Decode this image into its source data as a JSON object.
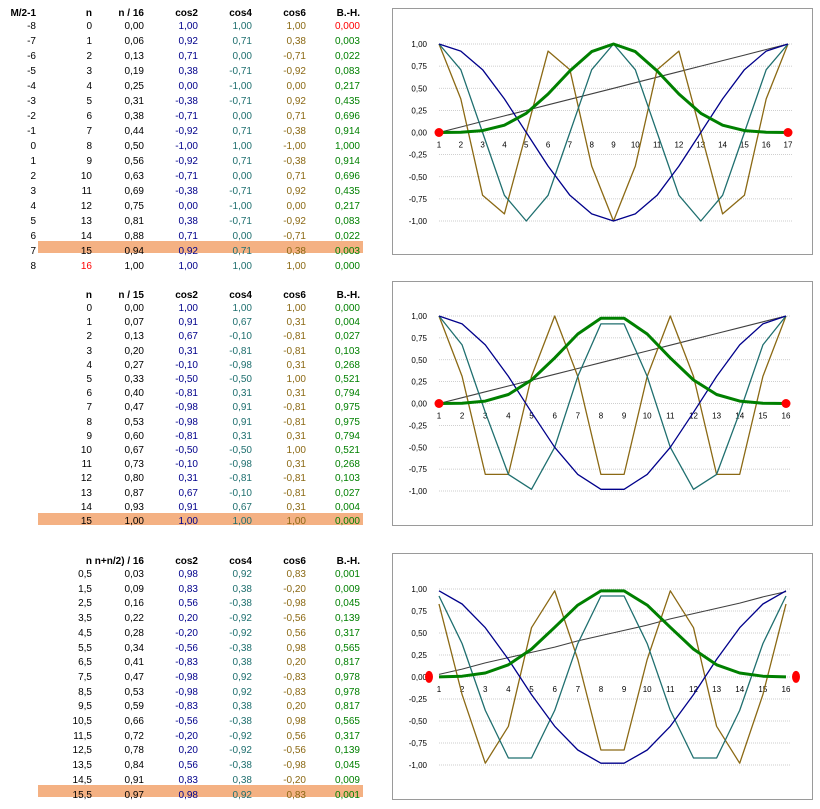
{
  "colors": {
    "cos2": "#00008b",
    "cos4": "#1f6f6f",
    "cos6": "#8b6914",
    "bh": "#008000",
    "line": "#404040",
    "marker": "#ff0000",
    "band": "#f4b183"
  },
  "tables": [
    {
      "headers": [
        "M/2-1",
        "n",
        "n / 16",
        "cos2",
        "cos4",
        "cos6",
        "B.-H."
      ],
      "rows": [
        [
          "-8",
          "0",
          "0,00",
          "1,00",
          "1,00",
          "1,00",
          "0,000"
        ],
        [
          "-7",
          "1",
          "0,06",
          "0,92",
          "0,71",
          "0,38",
          "0,003"
        ],
        [
          "-6",
          "2",
          "0,13",
          "0,71",
          "0,00",
          "-0,71",
          "0,022"
        ],
        [
          "-5",
          "3",
          "0,19",
          "0,38",
          "-0,71",
          "-0,92",
          "0,083"
        ],
        [
          "-4",
          "4",
          "0,25",
          "0,00",
          "-1,00",
          "0,00",
          "0,217"
        ],
        [
          "-3",
          "5",
          "0,31",
          "-0,38",
          "-0,71",
          "0,92",
          "0,435"
        ],
        [
          "-2",
          "6",
          "0,38",
          "-0,71",
          "0,00",
          "0,71",
          "0,696"
        ],
        [
          "-1",
          "7",
          "0,44",
          "-0,92",
          "0,71",
          "-0,38",
          "0,914"
        ],
        [
          "0",
          "8",
          "0,50",
          "-1,00",
          "1,00",
          "-1,00",
          "1,000"
        ],
        [
          "1",
          "9",
          "0,56",
          "-0,92",
          "0,71",
          "-0,38",
          "0,914"
        ],
        [
          "2",
          "10",
          "0,63",
          "-0,71",
          "0,00",
          "0,71",
          "0,696"
        ],
        [
          "3",
          "11",
          "0,69",
          "-0,38",
          "-0,71",
          "0,92",
          "0,435"
        ],
        [
          "4",
          "12",
          "0,75",
          "0,00",
          "-1,00",
          "0,00",
          "0,217"
        ],
        [
          "5",
          "13",
          "0,81",
          "0,38",
          "-0,71",
          "-0,92",
          "0,083"
        ],
        [
          "6",
          "14",
          "0,88",
          "0,71",
          "0,00",
          "-0,71",
          "0,022"
        ],
        [
          "7",
          "15",
          "0,94",
          "0,92",
          "0,71",
          "0,38",
          "0,003"
        ],
        [
          "8",
          "16",
          "1,00",
          "1,00",
          "1,00",
          "1,00",
          "0,000"
        ]
      ]
    },
    {
      "headers": [
        "",
        "n",
        "n / 15",
        "cos2",
        "cos4",
        "cos6",
        "B.-H."
      ],
      "rows": [
        [
          "",
          "0",
          "0,00",
          "1,00",
          "1,00",
          "1,00",
          "0,000"
        ],
        [
          "",
          "1",
          "0,07",
          "0,91",
          "0,67",
          "0,31",
          "0,004"
        ],
        [
          "",
          "2",
          "0,13",
          "0,67",
          "-0,10",
          "-0,81",
          "0,027"
        ],
        [
          "",
          "3",
          "0,20",
          "0,31",
          "-0,81",
          "-0,81",
          "0,103"
        ],
        [
          "",
          "4",
          "0,27",
          "-0,10",
          "-0,98",
          "0,31",
          "0,268"
        ],
        [
          "",
          "5",
          "0,33",
          "-0,50",
          "-0,50",
          "1,00",
          "0,521"
        ],
        [
          "",
          "6",
          "0,40",
          "-0,81",
          "0,31",
          "0,31",
          "0,794"
        ],
        [
          "",
          "7",
          "0,47",
          "-0,98",
          "0,91",
          "-0,81",
          "0,975"
        ],
        [
          "",
          "8",
          "0,53",
          "-0,98",
          "0,91",
          "-0,81",
          "0,975"
        ],
        [
          "",
          "9",
          "0,60",
          "-0,81",
          "0,31",
          "0,31",
          "0,794"
        ],
        [
          "",
          "10",
          "0,67",
          "-0,50",
          "-0,50",
          "1,00",
          "0,521"
        ],
        [
          "",
          "11",
          "0,73",
          "-0,10",
          "-0,98",
          "0,31",
          "0,268"
        ],
        [
          "",
          "12",
          "0,80",
          "0,31",
          "-0,81",
          "-0,81",
          "0,103"
        ],
        [
          "",
          "13",
          "0,87",
          "0,67",
          "-0,10",
          "-0,81",
          "0,027"
        ],
        [
          "",
          "14",
          "0,93",
          "0,91",
          "0,67",
          "0,31",
          "0,004"
        ],
        [
          "",
          "15",
          "1,00",
          "1,00",
          "1,00",
          "1,00",
          "0,000"
        ]
      ]
    },
    {
      "headers": [
        "",
        "n",
        "n+n/2) / 16",
        "cos2",
        "cos4",
        "cos6",
        "B.-H."
      ],
      "rows": [
        [
          "",
          "0,5",
          "0,03",
          "0,98",
          "0,92",
          "0,83",
          "0,001"
        ],
        [
          "",
          "1,5",
          "0,09",
          "0,83",
          "0,38",
          "-0,20",
          "0,009"
        ],
        [
          "",
          "2,5",
          "0,16",
          "0,56",
          "-0,38",
          "-0,98",
          "0,045"
        ],
        [
          "",
          "3,5",
          "0,22",
          "0,20",
          "-0,92",
          "-0,56",
          "0,139"
        ],
        [
          "",
          "4,5",
          "0,28",
          "-0,20",
          "-0,92",
          "0,56",
          "0,317"
        ],
        [
          "",
          "5,5",
          "0,34",
          "-0,56",
          "-0,38",
          "0,98",
          "0,565"
        ],
        [
          "",
          "6,5",
          "0,41",
          "-0,83",
          "0,38",
          "0,20",
          "0,817"
        ],
        [
          "",
          "7,5",
          "0,47",
          "-0,98",
          "0,92",
          "-0,83",
          "0,978"
        ],
        [
          "",
          "8,5",
          "0,53",
          "-0,98",
          "0,92",
          "-0,83",
          "0,978"
        ],
        [
          "",
          "9,5",
          "0,59",
          "-0,83",
          "0,38",
          "0,20",
          "0,817"
        ],
        [
          "",
          "10,5",
          "0,66",
          "-0,56",
          "-0,38",
          "0,98",
          "0,565"
        ],
        [
          "",
          "11,5",
          "0,72",
          "-0,20",
          "-0,92",
          "0,56",
          "0,317"
        ],
        [
          "",
          "12,5",
          "0,78",
          "0,20",
          "-0,92",
          "-0,56",
          "0,139"
        ],
        [
          "",
          "13,5",
          "0,84",
          "0,56",
          "-0,38",
          "-0,98",
          "0,045"
        ],
        [
          "",
          "14,5",
          "0,91",
          "0,83",
          "0,38",
          "-0,20",
          "0,009"
        ],
        [
          "",
          "15,5",
          "0,97",
          "0,98",
          "0,92",
          "0,83",
          "0,001"
        ]
      ]
    }
  ],
  "chart_data": [
    {
      "type": "line",
      "categories": [
        "1",
        "2",
        "3",
        "4",
        "5",
        "6",
        "7",
        "8",
        "9",
        "10",
        "11",
        "12",
        "13",
        "14",
        "15",
        "16",
        "17"
      ],
      "ylim": [
        -1,
        1
      ],
      "yticks": [
        "1,00",
        "0,75",
        "0,50",
        "0,25",
        "0,00",
        "-0,25",
        "-0,50",
        "-0,75",
        "-1,00"
      ],
      "grid": true,
      "series": [
        {
          "key": "cos2",
          "values": [
            1,
            0.92,
            0.71,
            0.38,
            0,
            -0.38,
            -0.71,
            -0.92,
            -1,
            -0.92,
            -0.71,
            -0.38,
            0,
            0.38,
            0.71,
            0.92,
            1
          ]
        },
        {
          "key": "cos4",
          "values": [
            1,
            0.71,
            0,
            -0.71,
            -1,
            -0.71,
            0,
            0.71,
            1,
            0.71,
            0,
            -0.71,
            -1,
            -0.71,
            0,
            0.71,
            1
          ]
        },
        {
          "key": "cos6",
          "values": [
            1,
            0.38,
            -0.71,
            -0.92,
            0,
            0.92,
            0.71,
            -0.38,
            -1,
            -0.38,
            0.71,
            0.92,
            0,
            -0.92,
            -0.71,
            0.38,
            1
          ]
        },
        {
          "key": "bh",
          "values": [
            0,
            0.003,
            0.022,
            0.083,
            0.217,
            0.435,
            0.696,
            0.914,
            1,
            0.914,
            0.696,
            0.435,
            0.217,
            0.083,
            0.022,
            0.003,
            0
          ]
        },
        {
          "key": "line",
          "values": [
            0,
            0.0625,
            0.125,
            0.1875,
            0.25,
            0.3125,
            0.375,
            0.4375,
            0.5,
            0.5625,
            0.625,
            0.6875,
            0.75,
            0.8125,
            0.875,
            0.9375,
            1
          ]
        }
      ]
    },
    {
      "type": "line",
      "categories": [
        "1",
        "2",
        "3",
        "4",
        "5",
        "6",
        "7",
        "8",
        "9",
        "10",
        "11",
        "12",
        "13",
        "14",
        "15",
        "16"
      ],
      "ylim": [
        -1,
        1
      ],
      "yticks": [
        "1,00",
        "0,75",
        "0,50",
        "0,25",
        "0,00",
        "-0,25",
        "-0,50",
        "-0,75",
        "-1,00"
      ],
      "grid": true,
      "series": [
        {
          "key": "cos2",
          "values": [
            1,
            0.91,
            0.67,
            0.31,
            -0.1,
            -0.5,
            -0.81,
            -0.98,
            -0.98,
            -0.81,
            -0.5,
            -0.1,
            0.31,
            0.67,
            0.91,
            1
          ]
        },
        {
          "key": "cos4",
          "values": [
            1,
            0.67,
            -0.1,
            -0.81,
            -0.98,
            -0.5,
            0.31,
            0.91,
            0.91,
            0.31,
            -0.5,
            -0.98,
            -0.81,
            -0.1,
            0.67,
            1
          ]
        },
        {
          "key": "cos6",
          "values": [
            1,
            0.31,
            -0.81,
            -0.81,
            0.31,
            1,
            0.31,
            -0.81,
            -0.81,
            0.31,
            1,
            0.31,
            -0.81,
            -0.81,
            0.31,
            1
          ]
        },
        {
          "key": "bh",
          "values": [
            0,
            0.004,
            0.027,
            0.103,
            0.268,
            0.521,
            0.794,
            0.975,
            0.975,
            0.794,
            0.521,
            0.268,
            0.103,
            0.027,
            0.004,
            0
          ]
        },
        {
          "key": "line",
          "values": [
            0,
            0.0667,
            0.1333,
            0.2,
            0.2667,
            0.3333,
            0.4,
            0.4667,
            0.5333,
            0.6,
            0.6667,
            0.7333,
            0.8,
            0.8667,
            0.9333,
            1
          ]
        }
      ]
    },
    {
      "type": "line",
      "categories": [
        "1",
        "2",
        "3",
        "4",
        "5",
        "6",
        "7",
        "8",
        "9",
        "10",
        "11",
        "12",
        "13",
        "14",
        "15",
        "16"
      ],
      "ylim": [
        -1,
        1
      ],
      "yticks": [
        "1,00",
        "0,75",
        "0,50",
        "0,25",
        "0,00",
        "-0,25",
        "-0,50",
        "-0,75",
        "-1,00"
      ],
      "grid": true,
      "series": [
        {
          "key": "cos2",
          "values": [
            0.98,
            0.83,
            0.56,
            0.2,
            -0.2,
            -0.56,
            -0.83,
            -0.98,
            -0.98,
            -0.83,
            -0.56,
            -0.2,
            0.2,
            0.56,
            0.83,
            0.98
          ]
        },
        {
          "key": "cos4",
          "values": [
            0.92,
            0.38,
            -0.38,
            -0.92,
            -0.92,
            -0.38,
            0.38,
            0.92,
            0.92,
            0.38,
            -0.38,
            -0.92,
            -0.92,
            -0.38,
            0.38,
            0.92
          ]
        },
        {
          "key": "cos6",
          "values": [
            0.83,
            -0.2,
            -0.98,
            -0.56,
            0.56,
            0.98,
            0.2,
            -0.83,
            -0.83,
            0.2,
            0.98,
            0.56,
            -0.56,
            -0.98,
            -0.2,
            0.83
          ]
        },
        {
          "key": "bh",
          "values": [
            0.001,
            0.009,
            0.045,
            0.139,
            0.317,
            0.565,
            0.817,
            0.978,
            0.978,
            0.817,
            0.565,
            0.317,
            0.139,
            0.045,
            0.009,
            0.001
          ]
        },
        {
          "key": "line",
          "values": [
            0.03,
            0.09,
            0.16,
            0.22,
            0.28,
            0.34,
            0.41,
            0.47,
            0.53,
            0.59,
            0.66,
            0.72,
            0.78,
            0.84,
            0.91,
            0.97
          ]
        }
      ]
    }
  ]
}
